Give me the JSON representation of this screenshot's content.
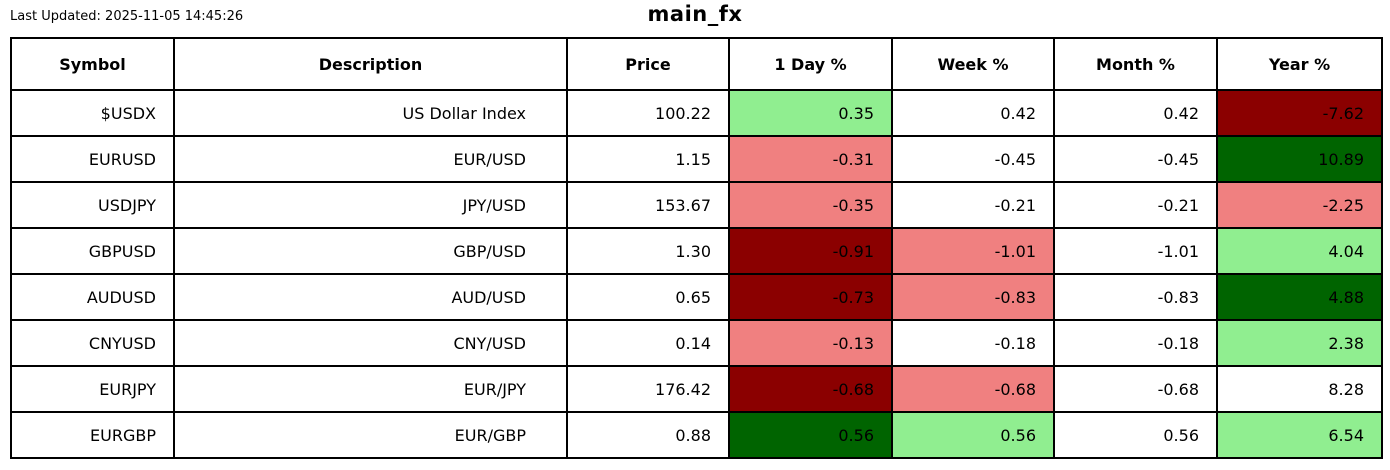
{
  "page": {
    "last_updated": "Last Updated: 2025-11-05 14:45:26",
    "title": "main_fx"
  },
  "colors": {
    "white": "#ffffff",
    "lightgreen": "#90ee90",
    "darkgreen": "#006400",
    "lightcoral": "#f08080",
    "darkred": "#8b0000",
    "border": "#000000",
    "text": "#000000"
  },
  "chart_data": {
    "type": "table",
    "title": "main_fx",
    "last_updated": "2025-11-05 14:45:26",
    "columns": [
      "Symbol",
      "Description",
      "Price",
      "1 Day %",
      "Week %",
      "Month %",
      "Year %"
    ],
    "rows": [
      {
        "symbol": "$USDX",
        "description": "US Dollar Index",
        "price": 100.22,
        "day_pct": 0.35,
        "week_pct": 0.42,
        "month_pct": 0.42,
        "year_pct": -7.62,
        "cell_colors": {
          "day_pct": "lightgreen",
          "week_pct": "white",
          "month_pct": "white",
          "year_pct": "darkred"
        }
      },
      {
        "symbol": "EURUSD",
        "description": "EUR/USD",
        "price": 1.15,
        "day_pct": -0.31,
        "week_pct": -0.45,
        "month_pct": -0.45,
        "year_pct": 10.89,
        "cell_colors": {
          "day_pct": "lightcoral",
          "week_pct": "white",
          "month_pct": "white",
          "year_pct": "darkgreen"
        }
      },
      {
        "symbol": "USDJPY",
        "description": "JPY/USD",
        "price": 153.67,
        "day_pct": -0.35,
        "week_pct": -0.21,
        "month_pct": -0.21,
        "year_pct": -2.25,
        "cell_colors": {
          "day_pct": "lightcoral",
          "week_pct": "white",
          "month_pct": "white",
          "year_pct": "lightcoral"
        }
      },
      {
        "symbol": "GBPUSD",
        "description": "GBP/USD",
        "price": 1.3,
        "day_pct": -0.91,
        "week_pct": -1.01,
        "month_pct": -1.01,
        "year_pct": 4.04,
        "cell_colors": {
          "day_pct": "darkred",
          "week_pct": "lightcoral",
          "month_pct": "white",
          "year_pct": "lightgreen"
        }
      },
      {
        "symbol": "AUDUSD",
        "description": "AUD/USD",
        "price": 0.65,
        "day_pct": -0.73,
        "week_pct": -0.83,
        "month_pct": -0.83,
        "year_pct": 4.88,
        "cell_colors": {
          "day_pct": "darkred",
          "week_pct": "lightcoral",
          "month_pct": "white",
          "year_pct": "darkgreen"
        }
      },
      {
        "symbol": "CNYUSD",
        "description": "CNY/USD",
        "price": 0.14,
        "day_pct": -0.13,
        "week_pct": -0.18,
        "month_pct": -0.18,
        "year_pct": 2.38,
        "cell_colors": {
          "day_pct": "lightcoral",
          "week_pct": "white",
          "month_pct": "white",
          "year_pct": "lightgreen"
        }
      },
      {
        "symbol": "EURJPY",
        "description": "EUR/JPY",
        "price": 176.42,
        "day_pct": -0.68,
        "week_pct": -0.68,
        "month_pct": -0.68,
        "year_pct": 8.28,
        "cell_colors": {
          "day_pct": "darkred",
          "week_pct": "lightcoral",
          "month_pct": "white",
          "year_pct": "white"
        }
      },
      {
        "symbol": "EURGBP",
        "description": "EUR/GBP",
        "price": 0.88,
        "day_pct": 0.56,
        "week_pct": 0.56,
        "month_pct": 0.56,
        "year_pct": 6.54,
        "cell_colors": {
          "day_pct": "darkgreen",
          "week_pct": "lightgreen",
          "month_pct": "white",
          "year_pct": "lightgreen"
        }
      }
    ]
  }
}
